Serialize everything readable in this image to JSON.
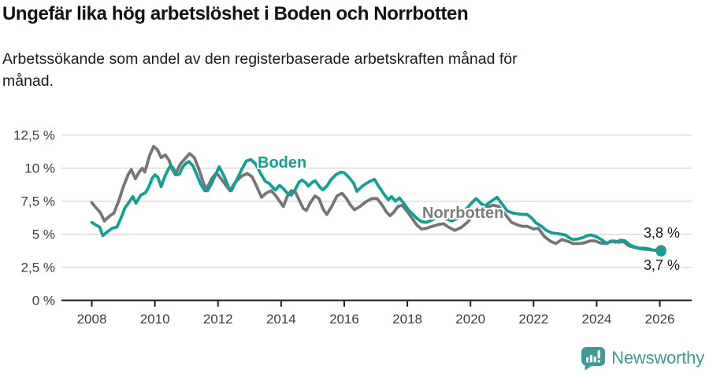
{
  "chart_data": {
    "type": "line",
    "title": "Ungefär lika hög arbetslöshet i Boden och Norrbotten",
    "subtitle": "Arbetssökande som andel av den registerbaserade arbetskraften månad för månad.",
    "xlabel": "",
    "ylabel": "",
    "xlim": [
      2007,
      2027
    ],
    "ylim": [
      0,
      12.5
    ],
    "grid": true,
    "legend": "inline-labels",
    "x_axis": {
      "tick_values": [
        2008,
        2010,
        2012,
        2014,
        2016,
        2018,
        2020,
        2022,
        2024,
        2026
      ],
      "tick_labels": [
        "2008",
        "2010",
        "2012",
        "2014",
        "2016",
        "2018",
        "2020",
        "2022",
        "2024",
        "2026"
      ]
    },
    "y_axis": {
      "tick_values": [
        0,
        2.5,
        5,
        7.5,
        10,
        12.5
      ],
      "tick_labels": [
        "0 %",
        "2,5 %",
        "5 %",
        "7,5 %",
        "10 %",
        "12,5 %"
      ]
    },
    "series": [
      {
        "name": "Boden",
        "label": "Boden",
        "color": "#13a094",
        "end_value": 3.7,
        "end_value_label": "3,7 %",
        "end_dot": true,
        "points": [
          [
            2008.0,
            5.9
          ],
          [
            2008.1,
            5.75
          ],
          [
            2008.25,
            5.55
          ],
          [
            2008.35,
            4.9
          ],
          [
            2008.5,
            5.2
          ],
          [
            2008.65,
            5.45
          ],
          [
            2008.8,
            5.55
          ],
          [
            2008.92,
            6.2
          ],
          [
            2009.05,
            7.0
          ],
          [
            2009.2,
            7.5
          ],
          [
            2009.3,
            7.85
          ],
          [
            2009.4,
            7.35
          ],
          [
            2009.55,
            7.95
          ],
          [
            2009.7,
            8.15
          ],
          [
            2009.8,
            8.55
          ],
          [
            2009.92,
            9.25
          ],
          [
            2010.0,
            9.5
          ],
          [
            2010.1,
            9.3
          ],
          [
            2010.2,
            8.6
          ],
          [
            2010.33,
            9.45
          ],
          [
            2010.42,
            9.9
          ],
          [
            2010.5,
            10.2
          ],
          [
            2010.58,
            10.0
          ],
          [
            2010.68,
            9.5
          ],
          [
            2010.78,
            9.55
          ],
          [
            2010.88,
            10.1
          ],
          [
            2011.0,
            10.4
          ],
          [
            2011.08,
            10.5
          ],
          [
            2011.2,
            10.2
          ],
          [
            2011.33,
            9.5
          ],
          [
            2011.45,
            8.8
          ],
          [
            2011.58,
            8.3
          ],
          [
            2011.67,
            8.3
          ],
          [
            2011.8,
            8.85
          ],
          [
            2011.92,
            9.5
          ],
          [
            2012.04,
            10.1
          ],
          [
            2012.2,
            9.35
          ],
          [
            2012.35,
            8.45
          ],
          [
            2012.42,
            8.3
          ],
          [
            2012.58,
            9.05
          ],
          [
            2012.75,
            9.9
          ],
          [
            2012.9,
            10.55
          ],
          [
            2013.04,
            10.65
          ],
          [
            2013.2,
            10.3
          ],
          [
            2013.35,
            9.6
          ],
          [
            2013.5,
            9.0
          ],
          [
            2013.62,
            8.85
          ],
          [
            2013.75,
            8.5
          ],
          [
            2013.82,
            8.35
          ],
          [
            2013.95,
            8.7
          ],
          [
            2014.07,
            8.45
          ],
          [
            2014.2,
            8.1
          ],
          [
            2014.32,
            7.95
          ],
          [
            2014.45,
            8.4
          ],
          [
            2014.57,
            8.95
          ],
          [
            2014.66,
            9.1
          ],
          [
            2014.78,
            8.9
          ],
          [
            2014.86,
            8.65
          ],
          [
            2015.0,
            8.95
          ],
          [
            2015.08,
            9.05
          ],
          [
            2015.2,
            8.65
          ],
          [
            2015.32,
            8.35
          ],
          [
            2015.45,
            8.65
          ],
          [
            2015.57,
            9.1
          ],
          [
            2015.73,
            9.5
          ],
          [
            2015.9,
            9.7
          ],
          [
            2016.0,
            9.65
          ],
          [
            2016.15,
            9.3
          ],
          [
            2016.3,
            8.85
          ],
          [
            2016.4,
            8.25
          ],
          [
            2016.55,
            8.6
          ],
          [
            2016.7,
            8.85
          ],
          [
            2016.85,
            9.05
          ],
          [
            2016.96,
            9.15
          ],
          [
            2017.1,
            8.6
          ],
          [
            2017.28,
            7.95
          ],
          [
            2017.4,
            7.6
          ],
          [
            2017.5,
            7.85
          ],
          [
            2017.62,
            7.5
          ],
          [
            2017.75,
            7.75
          ],
          [
            2017.9,
            7.3
          ],
          [
            2018.03,
            6.85
          ],
          [
            2018.16,
            6.55
          ],
          [
            2018.3,
            6.2
          ],
          [
            2018.45,
            5.95
          ],
          [
            2018.6,
            5.9
          ],
          [
            2018.8,
            6.1
          ],
          [
            2019.0,
            6.4
          ],
          [
            2019.2,
            6.2
          ],
          [
            2019.4,
            6.0
          ],
          [
            2019.6,
            6.2
          ],
          [
            2019.77,
            6.7
          ],
          [
            2019.9,
            7.0
          ],
          [
            2020.05,
            7.4
          ],
          [
            2020.18,
            7.7
          ],
          [
            2020.35,
            7.3
          ],
          [
            2020.47,
            7.15
          ],
          [
            2020.6,
            7.4
          ],
          [
            2020.72,
            7.6
          ],
          [
            2020.84,
            7.8
          ],
          [
            2021.0,
            7.3
          ],
          [
            2021.17,
            6.75
          ],
          [
            2021.35,
            6.6
          ],
          [
            2021.5,
            6.55
          ],
          [
            2021.65,
            6.5
          ],
          [
            2021.8,
            6.5
          ],
          [
            2021.95,
            6.2
          ],
          [
            2022.08,
            5.85
          ],
          [
            2022.25,
            5.6
          ],
          [
            2022.4,
            5.3
          ],
          [
            2022.58,
            5.1
          ],
          [
            2022.75,
            5.05
          ],
          [
            2022.9,
            5.0
          ],
          [
            2023.0,
            4.95
          ],
          [
            2023.12,
            4.75
          ],
          [
            2023.25,
            4.6
          ],
          [
            2023.4,
            4.65
          ],
          [
            2023.57,
            4.75
          ],
          [
            2023.7,
            4.9
          ],
          [
            2023.82,
            4.95
          ],
          [
            2024.0,
            4.8
          ],
          [
            2024.15,
            4.6
          ],
          [
            2024.32,
            4.3
          ],
          [
            2024.45,
            4.5
          ],
          [
            2024.6,
            4.4
          ],
          [
            2024.75,
            4.55
          ],
          [
            2024.9,
            4.5
          ],
          [
            2025.05,
            4.2
          ],
          [
            2025.2,
            4.05
          ],
          [
            2025.35,
            3.95
          ],
          [
            2025.5,
            3.95
          ],
          [
            2025.65,
            3.9
          ],
          [
            2025.8,
            3.8
          ],
          [
            2025.95,
            3.75
          ],
          [
            2026.04,
            3.7
          ]
        ]
      },
      {
        "name": "Norrbotten",
        "label": "Norrbotten",
        "color": "#757575",
        "end_value": 3.8,
        "end_value_label": "3,8 %",
        "end_dot": true,
        "points": [
          [
            2008.0,
            7.4
          ],
          [
            2008.12,
            7.05
          ],
          [
            2008.27,
            6.65
          ],
          [
            2008.4,
            6.0
          ],
          [
            2008.55,
            6.35
          ],
          [
            2008.7,
            6.6
          ],
          [
            2008.85,
            7.5
          ],
          [
            2009.0,
            8.6
          ],
          [
            2009.15,
            9.5
          ],
          [
            2009.25,
            9.9
          ],
          [
            2009.38,
            9.2
          ],
          [
            2009.5,
            9.7
          ],
          [
            2009.6,
            10.0
          ],
          [
            2009.68,
            9.7
          ],
          [
            2009.84,
            11.0
          ],
          [
            2009.96,
            11.65
          ],
          [
            2010.08,
            11.4
          ],
          [
            2010.2,
            10.8
          ],
          [
            2010.33,
            11.0
          ],
          [
            2010.45,
            10.6
          ],
          [
            2010.55,
            9.9
          ],
          [
            2010.65,
            9.5
          ],
          [
            2010.8,
            10.3
          ],
          [
            2010.95,
            10.7
          ],
          [
            2011.1,
            11.1
          ],
          [
            2011.25,
            10.8
          ],
          [
            2011.4,
            9.9
          ],
          [
            2011.55,
            8.8
          ],
          [
            2011.65,
            8.45
          ],
          [
            2011.8,
            9.2
          ],
          [
            2011.95,
            9.65
          ],
          [
            2012.1,
            9.2
          ],
          [
            2012.25,
            8.7
          ],
          [
            2012.38,
            8.3
          ],
          [
            2012.55,
            8.95
          ],
          [
            2012.75,
            9.4
          ],
          [
            2012.92,
            9.6
          ],
          [
            2013.08,
            9.35
          ],
          [
            2013.22,
            8.65
          ],
          [
            2013.38,
            7.8
          ],
          [
            2013.52,
            8.1
          ],
          [
            2013.68,
            8.3
          ],
          [
            2013.82,
            7.95
          ],
          [
            2013.95,
            7.5
          ],
          [
            2014.07,
            7.1
          ],
          [
            2014.2,
            7.9
          ],
          [
            2014.32,
            8.3
          ],
          [
            2014.45,
            8.2
          ],
          [
            2014.58,
            7.55
          ],
          [
            2014.7,
            6.95
          ],
          [
            2014.8,
            6.8
          ],
          [
            2014.93,
            7.4
          ],
          [
            2015.07,
            7.9
          ],
          [
            2015.2,
            7.7
          ],
          [
            2015.33,
            6.9
          ],
          [
            2015.45,
            6.5
          ],
          [
            2015.6,
            7.1
          ],
          [
            2015.77,
            7.9
          ],
          [
            2015.93,
            8.1
          ],
          [
            2016.07,
            7.7
          ],
          [
            2016.2,
            7.2
          ],
          [
            2016.32,
            6.85
          ],
          [
            2016.5,
            7.1
          ],
          [
            2016.68,
            7.45
          ],
          [
            2016.88,
            7.7
          ],
          [
            2017.04,
            7.7
          ],
          [
            2017.2,
            7.2
          ],
          [
            2017.33,
            6.7
          ],
          [
            2017.45,
            6.4
          ],
          [
            2017.58,
            6.7
          ],
          [
            2017.7,
            7.1
          ],
          [
            2017.83,
            7.2
          ],
          [
            2018.0,
            6.7
          ],
          [
            2018.15,
            6.2
          ],
          [
            2018.3,
            5.7
          ],
          [
            2018.45,
            5.4
          ],
          [
            2018.6,
            5.45
          ],
          [
            2018.8,
            5.6
          ],
          [
            2019.0,
            5.75
          ],
          [
            2019.15,
            5.8
          ],
          [
            2019.3,
            5.55
          ],
          [
            2019.5,
            5.3
          ],
          [
            2019.7,
            5.5
          ],
          [
            2019.9,
            5.9
          ],
          [
            2020.1,
            6.5
          ],
          [
            2020.3,
            6.9
          ],
          [
            2020.5,
            7.0
          ],
          [
            2020.7,
            7.2
          ],
          [
            2020.9,
            7.1
          ],
          [
            2021.1,
            6.5
          ],
          [
            2021.3,
            5.9
          ],
          [
            2021.5,
            5.7
          ],
          [
            2021.65,
            5.6
          ],
          [
            2021.8,
            5.6
          ],
          [
            2022.0,
            5.4
          ],
          [
            2022.15,
            5.45
          ],
          [
            2022.35,
            4.8
          ],
          [
            2022.55,
            4.45
          ],
          [
            2022.7,
            4.3
          ],
          [
            2022.9,
            4.6
          ],
          [
            2023.1,
            4.45
          ],
          [
            2023.25,
            4.3
          ],
          [
            2023.45,
            4.3
          ],
          [
            2023.6,
            4.35
          ],
          [
            2023.8,
            4.5
          ],
          [
            2023.95,
            4.5
          ],
          [
            2024.1,
            4.35
          ],
          [
            2024.25,
            4.3
          ],
          [
            2024.4,
            4.4
          ],
          [
            2024.55,
            4.5
          ],
          [
            2024.7,
            4.4
          ],
          [
            2024.85,
            4.45
          ],
          [
            2025.0,
            4.15
          ],
          [
            2025.2,
            4.0
          ],
          [
            2025.4,
            3.9
          ],
          [
            2025.6,
            3.85
          ],
          [
            2025.8,
            3.8
          ],
          [
            2025.95,
            3.82
          ],
          [
            2026.04,
            3.8
          ]
        ]
      }
    ]
  },
  "colors": {
    "boden_line": "#13a094",
    "norrbotten_line": "#757575",
    "norrbotten_label_text": "#7d7d7d",
    "grid_line": "#d9d9d9",
    "axis_line": "#1f1f1f",
    "axis_text": "#3d3d3d",
    "logo_teal": "#3c9b94"
  },
  "footer": {
    "brand": "Newsworthy"
  }
}
